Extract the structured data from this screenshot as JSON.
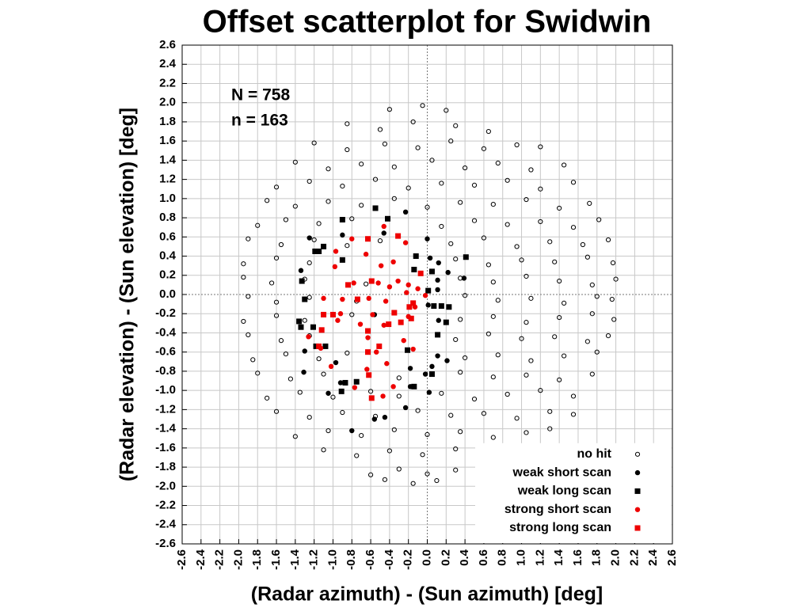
{
  "chart_data": {
    "type": "scatter",
    "title": "Offset scatterplot for Swidwin",
    "x_label": "(Radar azimuth) - (Sun azimuth) [deg]",
    "y_label": "(Radar elevation) - (Sun elevation) [deg]",
    "annotations": [
      "N = 758",
      "n = 163"
    ],
    "xlim": [
      -2.6,
      2.6
    ],
    "ylim": [
      -2.6,
      2.6
    ],
    "xticks": [
      -2.6,
      -2.4,
      -2.2,
      {
        "value": -2,
        "label": "-2.0"
      },
      -1.8,
      -1.6,
      -1.4,
      -1.2,
      {
        "value": -1,
        "label": "-1.0"
      },
      -0.8,
      -0.6,
      -0.4,
      -0.2,
      {
        "value": 0,
        "label": "0.0"
      },
      0.2,
      0.4,
      0.6,
      0.8,
      {
        "value": 1,
        "label": "1.0"
      },
      1.2,
      1.4,
      1.6,
      1.8,
      {
        "value": 2,
        "label": "2.0"
      },
      2.2,
      2.4,
      2.6
    ],
    "yticks": [
      -2.6,
      -2.4,
      -2.2,
      {
        "value": -2,
        "label": "-2.0"
      },
      -1.8,
      -1.6,
      -1.4,
      -1.2,
      {
        "value": -1,
        "label": "-1.0"
      },
      -0.8,
      -0.6,
      -0.4,
      -0.2,
      {
        "value": 0,
        "label": "0.0"
      },
      0.2,
      0.4,
      0.6,
      0.8,
      {
        "value": 1,
        "label": "1.0"
      },
      1.2,
      1.4,
      1.6,
      1.8,
      {
        "value": 2,
        "label": "2.0"
      },
      2.2,
      2.4,
      2.6
    ],
    "grid": true,
    "legend": "lower right",
    "series": [
      {
        "name": "no hit",
        "color": "#000000",
        "marker": "open-circle",
        "x": [
          -0.4,
          -0.05,
          0.2,
          -0.85,
          -0.5,
          -0.15,
          0.3,
          0.65,
          -1.2,
          -0.85,
          -0.45,
          -0.1,
          0.25,
          0.6,
          0.95,
          1.2,
          -1.4,
          -1.05,
          -0.7,
          -0.35,
          0.05,
          0.4,
          0.75,
          1.1,
          1.45,
          -1.6,
          -1.25,
          -0.9,
          -0.55,
          -0.2,
          0.15,
          0.5,
          0.85,
          1.2,
          1.55,
          -1.7,
          -1.4,
          -1.05,
          -0.7,
          -0.35,
          0.0,
          0.35,
          0.7,
          1.05,
          1.4,
          1.72,
          -1.8,
          -1.5,
          -1.15,
          -0.8,
          0.15,
          0.5,
          0.85,
          1.2,
          1.55,
          1.82,
          -1.9,
          -1.55,
          -1.2,
          -0.85,
          -0.5,
          0.25,
          0.6,
          0.95,
          1.3,
          1.65,
          1.92,
          -1.95,
          -1.6,
          -1.25,
          0.3,
          0.65,
          1.0,
          1.35,
          1.7,
          1.97,
          -1.95,
          -1.65,
          -1.3,
          -0.65,
          0.35,
          0.7,
          1.05,
          1.4,
          1.75,
          2.0,
          -1.9,
          -1.6,
          -1.25,
          -0.75,
          0.4,
          0.75,
          1.1,
          1.45,
          1.8,
          1.96,
          -1.95,
          -1.6,
          -1.3,
          -0.8,
          0.35,
          0.7,
          1.05,
          1.4,
          1.75,
          1.98,
          -1.9,
          -1.55,
          -1.25,
          0.3,
          0.65,
          1.0,
          1.35,
          1.7,
          1.92,
          -1.85,
          -1.5,
          -1.15,
          -0.85,
          0.4,
          0.75,
          1.1,
          1.45,
          1.8,
          -1.8,
          -1.45,
          -1.1,
          -0.3,
          0.35,
          0.7,
          1.05,
          1.4,
          1.75,
          -1.7,
          -1.35,
          -1.0,
          -0.6,
          -0.3,
          0.15,
          0.5,
          0.85,
          1.2,
          1.55,
          -1.6,
          -1.25,
          -0.9,
          -0.55,
          -0.1,
          0.25,
          0.6,
          0.95,
          1.3,
          1.55,
          -1.4,
          -1.05,
          -0.7,
          -0.35,
          0.0,
          0.35,
          0.7,
          1.05,
          1.3,
          -1.1,
          -0.75,
          -0.4,
          -0.05,
          0.3,
          0.65,
          0.95,
          -0.6,
          -0.3,
          0.0,
          0.3,
          0.55,
          -0.45,
          -0.15,
          0.1
        ],
        "y": [
          1.93,
          1.97,
          1.92,
          1.78,
          1.72,
          1.8,
          1.76,
          1.7,
          1.58,
          1.51,
          1.57,
          1.53,
          1.6,
          1.52,
          1.56,
          1.54,
          1.38,
          1.31,
          1.36,
          1.33,
          1.4,
          1.32,
          1.37,
          1.3,
          1.35,
          1.12,
          1.18,
          1.13,
          1.2,
          1.11,
          1.16,
          1.14,
          1.19,
          1.1,
          1.17,
          0.98,
          0.92,
          0.97,
          0.93,
          1.0,
          0.91,
          0.96,
          0.94,
          0.99,
          0.9,
          0.95,
          0.72,
          0.78,
          0.74,
          0.79,
          0.71,
          0.77,
          0.73,
          0.76,
          0.7,
          0.78,
          0.58,
          0.52,
          0.57,
          0.51,
          0.56,
          0.53,
          0.59,
          0.5,
          0.55,
          0.52,
          0.57,
          0.32,
          0.38,
          0.33,
          0.37,
          0.31,
          0.36,
          0.34,
          0.39,
          0.33,
          0.18,
          0.12,
          0.16,
          0.11,
          0.17,
          0.13,
          0.19,
          0.14,
          0.1,
          0.16,
          -0.02,
          -0.08,
          -0.03,
          -0.07,
          -0.01,
          -0.06,
          -0.04,
          -0.09,
          -0.02,
          -0.05,
          -0.28,
          -0.22,
          -0.27,
          -0.21,
          -0.26,
          -0.23,
          -0.29,
          -0.24,
          -0.2,
          -0.26,
          -0.42,
          -0.48,
          -0.43,
          -0.47,
          -0.41,
          -0.46,
          -0.44,
          -0.49,
          -0.43,
          -0.68,
          -0.62,
          -0.67,
          -0.61,
          -0.66,
          -0.63,
          -0.69,
          -0.64,
          -0.6,
          -0.82,
          -0.88,
          -0.83,
          -0.87,
          -0.81,
          -0.86,
          -0.84,
          -0.89,
          -0.83,
          -1.08,
          -1.02,
          -1.07,
          -1.01,
          -1.06,
          -1.03,
          -1.09,
          -1.04,
          -1.0,
          -1.06,
          -1.22,
          -1.28,
          -1.23,
          -1.27,
          -1.21,
          -1.26,
          -1.24,
          -1.29,
          -1.22,
          -1.25,
          -1.48,
          -1.42,
          -1.47,
          -1.41,
          -1.46,
          -1.43,
          -1.49,
          -1.44,
          -1.4,
          -1.62,
          -1.68,
          -1.63,
          -1.67,
          -1.61,
          -1.66,
          -1.64,
          -1.88,
          -1.82,
          -1.87,
          -1.83,
          -1.86,
          -1.93,
          -1.97,
          -1.94
        ]
      },
      {
        "name": "weak short scan",
        "color": "#000000",
        "marker": "circle",
        "x": [
          -1.34,
          -1.25,
          -0.9,
          -0.46,
          -0.23,
          0.0,
          0.03,
          0.12,
          0.22,
          0.39,
          0.11,
          0.11,
          0.01,
          -1.3,
          -1.31,
          -0.97,
          -0.92,
          -1.05,
          -0.56,
          -0.45,
          -0.23,
          -0.18,
          -0.18,
          -0.02,
          0.05,
          0.02,
          0.11,
          0.21,
          -0.8,
          -0.56,
          0.12,
          0.07
        ],
        "y": [
          0.25,
          0.59,
          0.62,
          0.64,
          0.86,
          0.58,
          0.38,
          0.33,
          0.23,
          0.17,
          0.15,
          0.05,
          -0.11,
          -0.59,
          -0.81,
          -0.71,
          -0.92,
          -1.03,
          -1.3,
          -1.28,
          -1.18,
          -0.77,
          -0.96,
          -0.83,
          -0.75,
          -1.02,
          -0.64,
          -0.69,
          -1.42,
          -0.21,
          -0.27,
          -0.12
        ]
      },
      {
        "name": "weak long scan",
        "color": "#000000",
        "marker": "square",
        "x": [
          -0.9,
          -1.33,
          -1.3,
          -1.36,
          -1.34,
          -1.21,
          -1.18,
          -1.08,
          -1.19,
          -1.15,
          -1.1,
          -0.9,
          -0.55,
          -0.42,
          -0.12,
          -0.14,
          0.05,
          0.01,
          0.07,
          0.15,
          0.23,
          0.2,
          -0.87,
          -0.75,
          -0.91,
          -0.14,
          0.05,
          0.11,
          -0.21,
          0.41
        ],
        "y": [
          0.78,
          0.14,
          -0.05,
          -0.28,
          -0.34,
          -0.34,
          -0.54,
          -0.54,
          0.45,
          0.45,
          0.5,
          0.36,
          0.9,
          0.79,
          0.4,
          0.26,
          0.24,
          0.04,
          -0.12,
          -0.12,
          -0.13,
          -0.29,
          -0.92,
          -0.91,
          -1.01,
          -0.96,
          -0.83,
          -0.42,
          -0.58,
          0.39
        ]
      },
      {
        "name": "strong short scan",
        "color": "#ee0000",
        "marker": "circle",
        "x": [
          -0.97,
          -0.98,
          -0.78,
          -1.1,
          -0.9,
          -0.92,
          -1.26,
          -1.13,
          -1.02,
          -0.8,
          -0.65,
          -0.49,
          -0.36,
          -0.52,
          -0.4,
          -0.62,
          -0.44,
          -0.58,
          -0.46,
          -0.63,
          -0.54,
          -0.64,
          -0.43,
          -0.77,
          -0.47,
          -0.36,
          -0.22,
          -0.2,
          -0.25,
          -0.23,
          -0.1,
          -0.13,
          -0.02,
          -0.46,
          -0.31,
          -0.2,
          -0.71,
          -0.15,
          -0.95
        ],
        "y": [
          0.45,
          0.29,
          0.12,
          -0.04,
          -0.05,
          -0.2,
          -0.44,
          -0.56,
          -0.75,
          0.58,
          0.42,
          0.3,
          0.34,
          0.12,
          0.08,
          -0.04,
          -0.07,
          -0.21,
          -0.32,
          -0.45,
          -0.6,
          -0.78,
          -0.72,
          -0.97,
          -1.06,
          -0.96,
          0.02,
          -0.23,
          -0.48,
          0.54,
          0.06,
          -0.13,
          -0.01,
          0.71,
          0.14,
          0.1,
          -0.31,
          -0.57,
          -0.27
        ]
      },
      {
        "name": "strong long scan",
        "color": "#ee0000",
        "marker": "square",
        "x": [
          -0.63,
          -0.84,
          -0.59,
          -0.74,
          -1.1,
          -1.0,
          -1.12,
          -1.15,
          -0.63,
          -0.63,
          -0.51,
          -0.62,
          -0.59,
          -0.41,
          -0.35,
          -0.19,
          -0.28,
          -0.17,
          -0.07,
          -0.31,
          -0.15
        ],
        "y": [
          0.58,
          0.1,
          0.14,
          -0.05,
          -0.21,
          -0.21,
          -0.37,
          -0.54,
          -0.38,
          -0.6,
          -0.54,
          -0.84,
          -1.08,
          -0.31,
          -0.19,
          -0.13,
          -0.29,
          -0.25,
          0.22,
          0.61,
          -0.09
        ]
      }
    ]
  }
}
